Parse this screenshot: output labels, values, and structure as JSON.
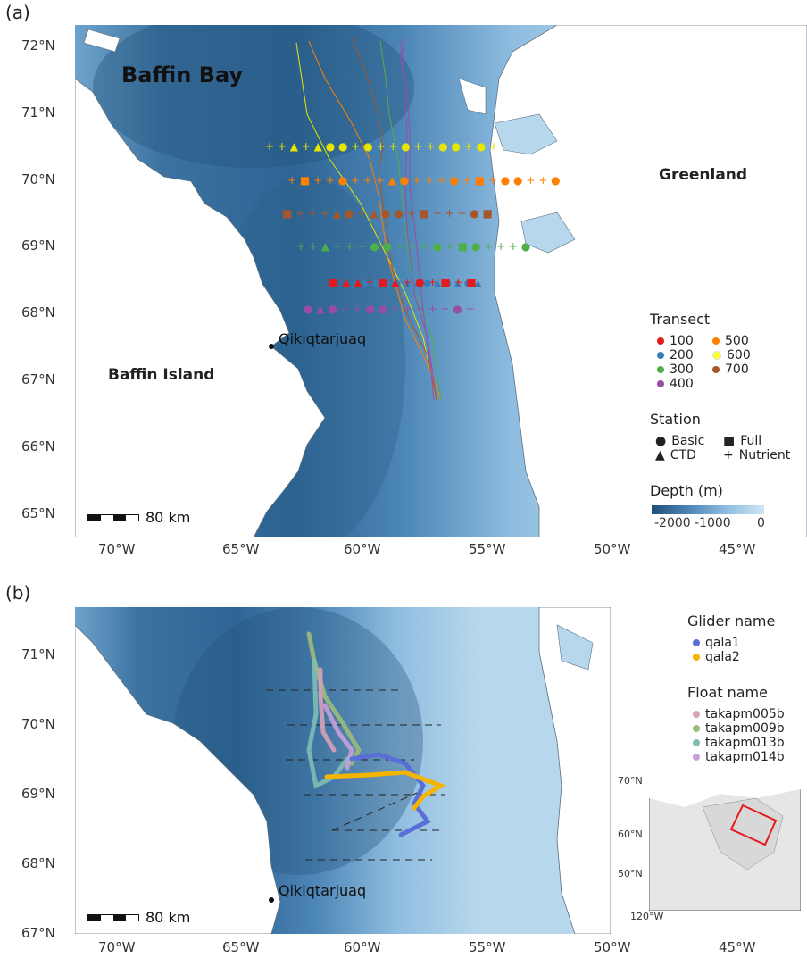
{
  "panel_a": {
    "label": "(a)",
    "lat_ticks": [
      "72°N",
      "71°N",
      "70°N",
      "69°N",
      "68°N",
      "67°N",
      "66°N",
      "65°N"
    ],
    "lon_ticks": [
      "70°W",
      "65°W",
      "60°W",
      "55°W",
      "50°W",
      "45°W"
    ],
    "places": {
      "baffin_bay": "Baffin Bay",
      "greenland": "Greenland",
      "baffin_island": "Baffin Island",
      "qikiqtarjuaq": "Qikiqtarjuaq"
    },
    "scale": "80 km",
    "legend": {
      "transect_title": "Transect",
      "transects": [
        {
          "label": "100",
          "color": "#e41a1c"
        },
        {
          "label": "200",
          "color": "#377eb8"
        },
        {
          "label": "300",
          "color": "#4daf4a"
        },
        {
          "label": "400",
          "color": "#984ea3"
        },
        {
          "label": "500",
          "color": "#ff7f00"
        },
        {
          "label": "600",
          "color": "#ffff33"
        },
        {
          "label": "700",
          "color": "#a65628"
        }
      ],
      "station_title": "Station",
      "stations": [
        {
          "label": "Basic",
          "symbol": "●"
        },
        {
          "label": "Full",
          "symbol": "■"
        },
        {
          "label": "CTD",
          "symbol": "▲"
        },
        {
          "label": "Nutrient",
          "symbol": "+"
        }
      ],
      "depth_title": "Depth (m)",
      "depth_ticks": [
        "-2000",
        "-1000",
        "0"
      ]
    }
  },
  "panel_b": {
    "label": "(b)",
    "lat_ticks": [
      "71°N",
      "70°N",
      "69°N",
      "68°N",
      "67°N"
    ],
    "lon_ticks": [
      "70°W",
      "65°W",
      "60°W",
      "55°W",
      "50°W",
      "45°W"
    ],
    "places": {
      "qikiqtarjuaq": "Qikiqtarjuaq"
    },
    "scale": "80 km",
    "legend": {
      "glider_title": "Glider name",
      "gliders": [
        {
          "label": "qala1",
          "color": "#5a6fd6"
        },
        {
          "label": "qala2",
          "color": "#f5b400"
        }
      ],
      "float_title": "Float name",
      "floats": [
        {
          "label": "takapm005b",
          "color": "#d9a0b8"
        },
        {
          "label": "takapm009b",
          "color": "#9dbb7a"
        },
        {
          "label": "takapm013b",
          "color": "#7fbcb4"
        },
        {
          "label": "takapm014b",
          "color": "#c7a0d8"
        }
      ]
    },
    "inset": {
      "lat_ticks": [
        "70°N",
        "60°N",
        "50°N"
      ],
      "lon_tick": "120°W"
    }
  },
  "colors": {
    "deep": "#2c5f8a",
    "mid": "#5f95c2",
    "shallow": "#b6d7ec",
    "land": "#ffffff"
  }
}
